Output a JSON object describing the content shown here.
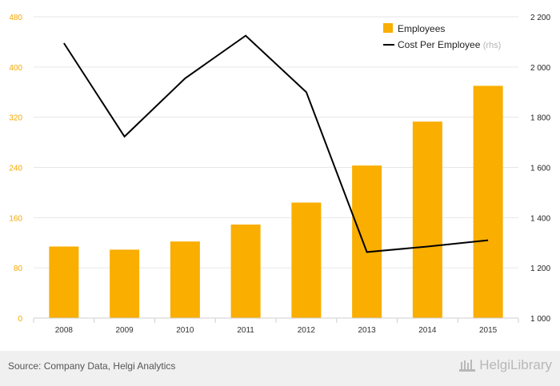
{
  "chart_data": {
    "type": "bar",
    "categories": [
      "2008",
      "2009",
      "2010",
      "2011",
      "2012",
      "2013",
      "2014",
      "2015"
    ],
    "series": [
      {
        "name": "Employees",
        "type": "bar",
        "axis": "left",
        "color": "#f9ae00",
        "values": [
          114,
          109,
          122,
          149,
          184,
          243,
          313,
          370
        ]
      },
      {
        "name": "Cost Per Employee",
        "type": "line",
        "axis": "right",
        "color": "#000000",
        "values": [
          2095,
          1723,
          1955,
          2125,
          1900,
          1263,
          1285,
          1310
        ]
      }
    ],
    "left_axis": {
      "min": 0,
      "max": 480,
      "ticks": [
        "0",
        "80",
        "160",
        "240",
        "320",
        "400",
        "480"
      ]
    },
    "right_axis": {
      "min": 1000,
      "max": 2200,
      "ticks": [
        "1 000",
        "1 200",
        "1 400",
        "1 600",
        "1 800",
        "2 000",
        "2 200"
      ]
    },
    "legend": [
      {
        "label": "Employees",
        "suffix": ""
      },
      {
        "label": "Cost Per Employee",
        "suffix": "(rhs)"
      }
    ],
    "legend_position": "top-right",
    "grid": "horizontal"
  },
  "footer": {
    "source": "Source: Company Data, Helgi Analytics",
    "brand": "HelgiLibrary"
  }
}
